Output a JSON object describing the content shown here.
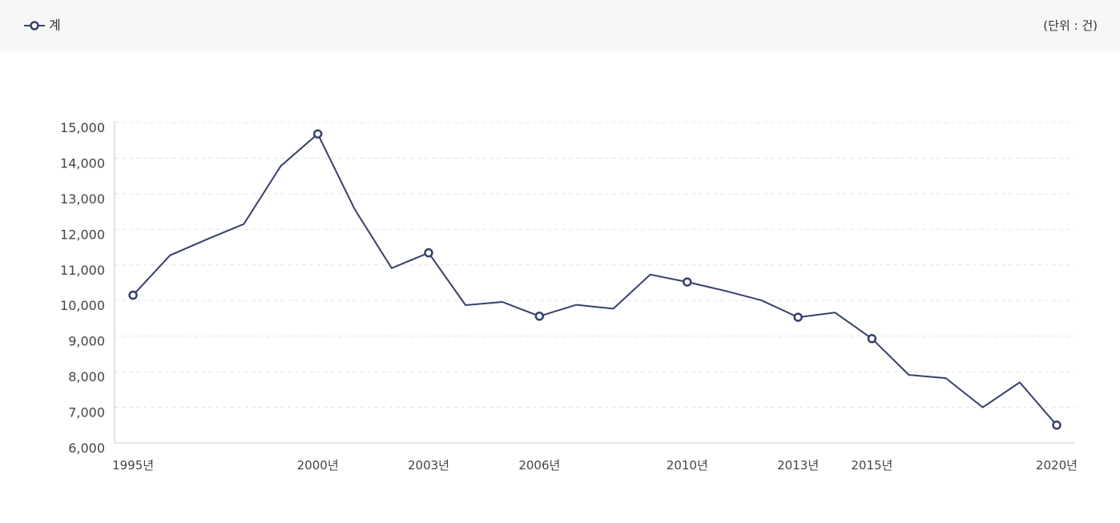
{
  "legend": {
    "label": "계"
  },
  "unit_label": "(단위 : 건)",
  "colors": {
    "series": "#36406b",
    "grid": "#e3e3e3",
    "axis": "#c8c8c8",
    "header_bg": "#f7f7f7"
  },
  "chart_data": {
    "type": "line",
    "title": "",
    "xlabel": "",
    "ylabel": "",
    "ylim": [
      6000,
      15000
    ],
    "y_ticks": [
      "15,000",
      "14,000",
      "13,000",
      "12,000",
      "11,000",
      "10,000",
      "9,000",
      "8,000",
      "7,000",
      "6,000"
    ],
    "y_tick_values": [
      15000,
      14000,
      13000,
      12000,
      11000,
      10000,
      9000,
      8000,
      7000,
      6000
    ],
    "x_tick_labels": [
      {
        "year": 1995,
        "label": "1995년"
      },
      {
        "year": 2000,
        "label": "2000년"
      },
      {
        "year": 2003,
        "label": "2003년"
      },
      {
        "year": 2006,
        "label": "2006년"
      },
      {
        "year": 2010,
        "label": "2010년"
      },
      {
        "year": 2013,
        "label": "2013년"
      },
      {
        "year": 2015,
        "label": "2015년"
      },
      {
        "year": 2020,
        "label": "2020년"
      }
    ],
    "grid": true,
    "legend_position": "top-left",
    "series": [
      {
        "name": "계",
        "x": [
          1995,
          1996,
          1997,
          1998,
          1999,
          2000,
          2001,
          2002,
          2003,
          2004,
          2005,
          2006,
          2007,
          2008,
          2009,
          2010,
          2011,
          2012,
          2013,
          2014,
          2015,
          2016,
          2017,
          2018,
          2019,
          2020
        ],
        "values": [
          10150,
          11270,
          11720,
          12150,
          13780,
          14680,
          12560,
          10910,
          11340,
          9870,
          9960,
          9560,
          9880,
          9770,
          10730,
          10520,
          10280,
          10010,
          9530,
          9660,
          8930,
          7910,
          7820,
          7000,
          7700,
          6500
        ],
        "markers_at": [
          1995,
          2000,
          2003,
          2006,
          2010,
          2013,
          2015,
          2020
        ]
      }
    ]
  }
}
